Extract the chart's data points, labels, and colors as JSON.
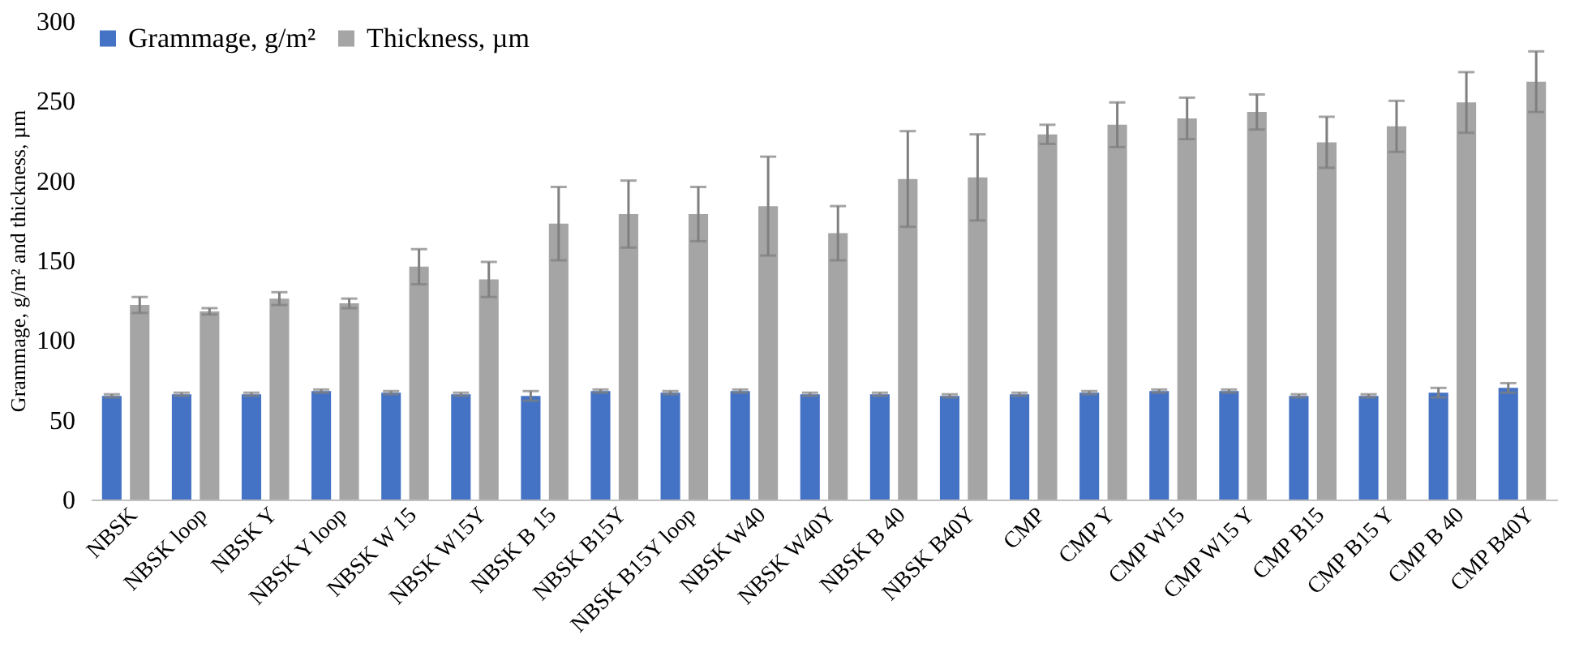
{
  "chart_data": {
    "type": "bar",
    "categories": [
      "NBSK",
      "NBSK loop",
      "NBSK Y",
      "NBSK Y loop",
      "NBSK W 15",
      "NBSK W15Y",
      "NBSK B 15",
      "NBSK B15Y",
      "NBSK B15Y loop",
      "NBSK W40",
      "NBSK W40Y",
      "NBSK B 40",
      "NBSK B40Y",
      "CMP",
      "CMP Y",
      "CMP W15",
      "CMP W15 Y",
      "CMP B15",
      "CMP B15 Y",
      "CMP B 40",
      "CMP B40Y"
    ],
    "series": [
      {
        "name": "Grammage, g/m²",
        "color": "#4472c4",
        "values": [
          65,
          66,
          66,
          68,
          67,
          66,
          65,
          68,
          67,
          68,
          66,
          66,
          65,
          66,
          67,
          68,
          68,
          65,
          65,
          67,
          70
        ],
        "errors": [
          1,
          1,
          1,
          1,
          1,
          1,
          3,
          1,
          1,
          1,
          1,
          1,
          1,
          1,
          1,
          1,
          1,
          1,
          1,
          3,
          3
        ]
      },
      {
        "name": "Thickness, µm",
        "color": "#a5a5a5",
        "values": [
          122,
          118,
          126,
          123,
          146,
          138,
          173,
          179,
          179,
          184,
          167,
          201,
          202,
          229,
          235,
          239,
          243,
          224,
          234,
          249,
          262
        ],
        "errors": [
          5,
          2,
          4,
          3,
          11,
          11,
          23,
          21,
          17,
          31,
          17,
          30,
          27,
          6,
          14,
          13,
          11,
          16,
          16,
          19,
          19
        ]
      }
    ],
    "ylabel": "Grammage, g/m² and thickness, µm",
    "ylim": [
      0,
      300
    ],
    "yticks": [
      0,
      50,
      100,
      150,
      200,
      250,
      300
    ],
    "grid": false,
    "legend": "top left"
  }
}
